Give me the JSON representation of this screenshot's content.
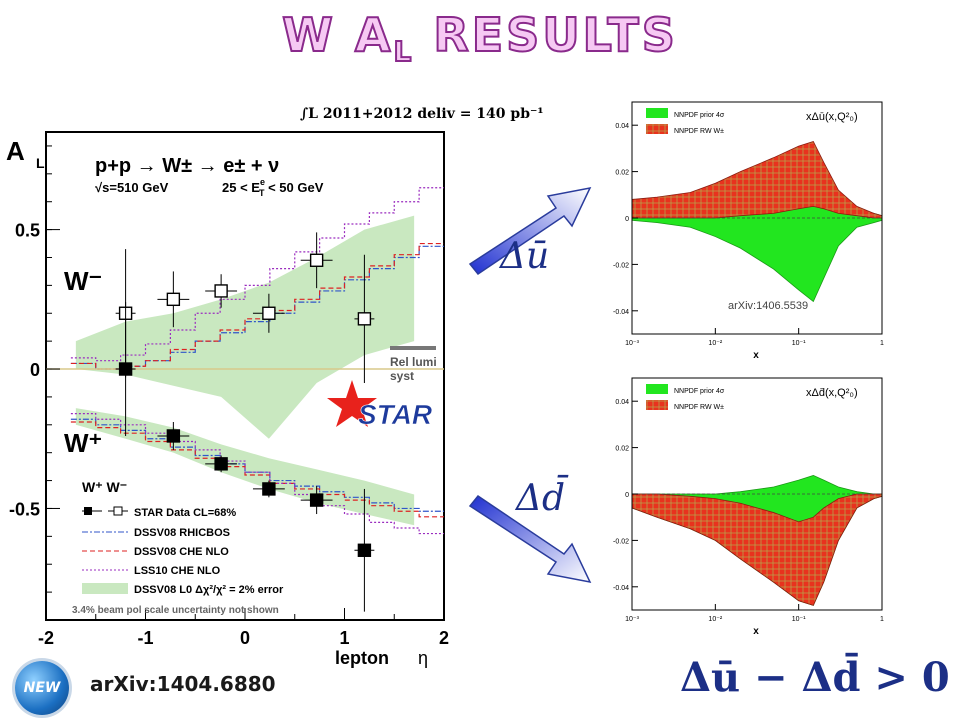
{
  "slide": {
    "title_main": "W A",
    "title_sub": "L",
    "title_tail": " RESULTS",
    "luminosity_label": "∫L 2011+2012 deliv = 140 pb⁻¹",
    "arxiv_left": "arXiv:1404.6880",
    "arxiv_right": "arXiv:1406.5539",
    "new_badge": "NEW",
    "arrow_upper_label": "Δū",
    "arrow_lower_label": "Δd̄",
    "inequality": "Δū − Δd̄ > 0"
  },
  "colors": {
    "title_fill": "#f6c9f3",
    "title_stroke": "#8a2a8c",
    "band": "#c9e8c0",
    "nnpdf_prior": "#22e61f",
    "nnpdf_rw": "#e8321e",
    "arrow": "#2a48d8"
  },
  "main": {
    "ylabel": "A",
    "ylabel_sub": "L",
    "xlabel_1": "lepton",
    "xlabel_2": "η",
    "reaction": "p+p → W± → e± + ν",
    "sqrt_s": "√s=510 GeV",
    "et_cut": "25 < E",
    "et_cut_sup": "e",
    "et_cut_sub": "T",
    "et_cut_tail": " < 50 GeV",
    "label_wminus": "W⁻",
    "label_wplus": "W⁺",
    "rel_lumi_1": "Rel lumi",
    "rel_lumi_2": "syst",
    "star_logo": "STAR",
    "legend_header": "W⁺ W⁻",
    "legend": [
      "STAR Data CL=68%",
      "DSSV08  RHICBOS",
      "DSSV08  CHE NLO",
      "LSS10 CHE NLO",
      "DSSV08 L0  Δχ²/χ² = 2% error"
    ],
    "footnote": "3.4% beam pol scale uncertainty not shown",
    "xticks": [
      "-2",
      "-1",
      "0",
      "1",
      "2"
    ],
    "yticks": [
      "0.5",
      "0",
      "-0.5"
    ]
  },
  "panel_top": {
    "title": "xΔū(x,Q²₀)",
    "legend": [
      "NNPDF prior 4σ",
      "NNPDF RW W±"
    ],
    "xlabel": "x",
    "yticks": [
      "0.04",
      "0.02",
      "0",
      "-0.02",
      "-0.04"
    ],
    "xticks": [
      "10⁻³",
      "10⁻²",
      "10⁻¹",
      "1"
    ]
  },
  "panel_bottom": {
    "title": "xΔd̄(x,Q²₀)",
    "legend": [
      "NNPDF prior 4σ",
      "NNPDF RW W±"
    ],
    "xlabel": "x",
    "yticks": [
      "0.04",
      "0.02",
      "0",
      "-0.02",
      "-0.04"
    ],
    "xticks": [
      "10⁻³",
      "10⁻²",
      "10⁻¹",
      "1"
    ]
  },
  "chart_data": [
    {
      "type": "scatter",
      "title": "",
      "xlabel": "lepton η",
      "ylabel": "A_L",
      "xlim": [
        -2,
        2
      ],
      "ylim": [
        -0.9,
        0.85
      ],
      "series": [
        {
          "name": "W⁻",
          "marker": "open-square",
          "x": [
            -1.2,
            -0.72,
            -0.24,
            0.24,
            0.72,
            1.2
          ],
          "y": [
            0.2,
            0.25,
            0.28,
            0.2,
            0.39,
            0.18
          ],
          "yerr": [
            0.23,
            0.1,
            0.06,
            0.07,
            0.1,
            0.23
          ],
          "xerr": [
            0.1,
            0.16,
            0.16,
            0.16,
            0.16,
            0.1
          ]
        },
        {
          "name": "W⁺",
          "marker": "filled-square",
          "x": [
            -1.2,
            -0.72,
            -0.24,
            0.24,
            0.72,
            1.2
          ],
          "y": [
            0.0,
            -0.24,
            -0.34,
            -0.43,
            -0.47,
            -0.65
          ],
          "yerr": [
            0.24,
            0.05,
            0.03,
            0.03,
            0.05,
            0.22
          ],
          "xerr": [
            0.1,
            0.16,
            0.16,
            0.16,
            0.16,
            0.1
          ]
        }
      ],
      "bands": [
        {
          "name": "DSSV08 L0 Δχ²/χ² = 2% error (W⁻)",
          "x": [
            -1.7,
            -1.2,
            -0.72,
            -0.24,
            0.24,
            0.72,
            1.2,
            1.7
          ],
          "upper": [
            0.1,
            0.17,
            0.2,
            0.25,
            0.31,
            0.4,
            0.5,
            0.55
          ],
          "lower": [
            0.0,
            -0.02,
            -0.06,
            -0.1,
            -0.25,
            -0.05,
            0.05,
            0.1
          ]
        },
        {
          "name": "DSSV08 L0 Δχ²/χ² = 2% error (W⁺)",
          "x": [
            -1.7,
            -1.2,
            -0.72,
            -0.24,
            0.24,
            0.72,
            1.2,
            1.7
          ],
          "upper": [
            -0.14,
            -0.17,
            -0.21,
            -0.27,
            -0.32,
            -0.36,
            -0.4,
            -0.45
          ],
          "lower": [
            -0.2,
            -0.25,
            -0.3,
            -0.37,
            -0.43,
            -0.48,
            -0.52,
            -0.56
          ]
        }
      ],
      "curves": [
        {
          "name": "DSSV08 RHICBOS (W⁻)",
          "style": "blue-dashdot",
          "x": [
            -1.75,
            -1.5,
            -1.25,
            -1.0,
            -0.75,
            -0.5,
            -0.25,
            0,
            0.25,
            0.5,
            0.75,
            1.0,
            1.25,
            1.5,
            1.75
          ],
          "y": [
            0.02,
            0.0,
            0.01,
            0.03,
            0.06,
            0.1,
            0.13,
            0.17,
            0.2,
            0.24,
            0.28,
            0.32,
            0.36,
            0.4,
            0.44
          ]
        },
        {
          "name": "DSSV08 CHE NLO (W⁻)",
          "style": "red-dashed",
          "x": [
            -1.75,
            -1.5,
            -1.25,
            -1.0,
            -0.75,
            -0.5,
            -0.25,
            0,
            0.25,
            0.5,
            0.75,
            1.0,
            1.25,
            1.5,
            1.75
          ],
          "y": [
            0.02,
            0.0,
            0.01,
            0.03,
            0.07,
            0.1,
            0.14,
            0.18,
            0.21,
            0.25,
            0.29,
            0.33,
            0.37,
            0.41,
            0.45
          ]
        },
        {
          "name": "LSS10 CHE NLO (W⁻)",
          "style": "purple-dotted",
          "x": [
            -1.75,
            -1.5,
            -1.25,
            -1.0,
            -0.75,
            -0.5,
            -0.25,
            0,
            0.25,
            0.5,
            0.75,
            1.0,
            1.25,
            1.5,
            1.75
          ],
          "y": [
            0.04,
            0.03,
            0.05,
            0.09,
            0.14,
            0.2,
            0.25,
            0.3,
            0.36,
            0.42,
            0.47,
            0.52,
            0.56,
            0.6,
            0.65
          ]
        },
        {
          "name": "DSSV08 RHICBOS (W⁺)",
          "style": "blue-dashdot",
          "x": [
            -1.75,
            -1.5,
            -1.25,
            -1.0,
            -0.75,
            -0.5,
            -0.25,
            0,
            0.25,
            0.5,
            0.75,
            1.0,
            1.25,
            1.5,
            1.75
          ],
          "y": [
            -0.18,
            -0.2,
            -0.22,
            -0.25,
            -0.28,
            -0.31,
            -0.34,
            -0.37,
            -0.4,
            -0.42,
            -0.44,
            -0.46,
            -0.48,
            -0.5,
            -0.51
          ]
        },
        {
          "name": "DSSV08 CHE NLO (W⁺)",
          "style": "red-dashed",
          "x": [
            -1.75,
            -1.5,
            -1.25,
            -1.0,
            -0.75,
            -0.5,
            -0.25,
            0,
            0.25,
            0.5,
            0.75,
            1.0,
            1.25,
            1.5,
            1.75
          ],
          "y": [
            -0.19,
            -0.21,
            -0.23,
            -0.26,
            -0.29,
            -0.32,
            -0.35,
            -0.38,
            -0.41,
            -0.43,
            -0.45,
            -0.47,
            -0.49,
            -0.51,
            -0.53
          ]
        },
        {
          "name": "LSS10 CHE NLO (W⁺)",
          "style": "purple-dotted",
          "x": [
            -1.75,
            -1.5,
            -1.25,
            -1.0,
            -0.75,
            -0.5,
            -0.25,
            0,
            0.25,
            0.5,
            0.75,
            1.0,
            1.25,
            1.5,
            1.75
          ],
          "y": [
            -0.16,
            -0.18,
            -0.2,
            -0.23,
            -0.26,
            -0.29,
            -0.33,
            -0.37,
            -0.41,
            -0.45,
            -0.49,
            -0.52,
            -0.55,
            -0.57,
            -0.59
          ]
        }
      ]
    },
    {
      "type": "area",
      "title": "xΔū(x,Q²₀)",
      "xlabel": "x",
      "xscale": "log",
      "xlim": [
        0.001,
        1
      ],
      "ylim": [
        -0.05,
        0.05
      ],
      "x": [
        0.001,
        0.002,
        0.005,
        0.01,
        0.02,
        0.05,
        0.1,
        0.15,
        0.2,
        0.3,
        0.5,
        0.8,
        1
      ],
      "series": [
        {
          "name": "NNPDF prior 4σ",
          "upper": [
            0.002,
            0.003,
            0.005,
            0.008,
            0.012,
            0.018,
            0.022,
            0.024,
            0.018,
            0.01,
            0.004,
            0.002,
            0.001
          ],
          "lower": [
            -0.001,
            -0.002,
            -0.004,
            -0.008,
            -0.013,
            -0.022,
            -0.031,
            -0.036,
            -0.026,
            -0.012,
            -0.004,
            -0.002,
            -0.001
          ]
        },
        {
          "name": "NNPDF RW W±",
          "upper": [
            0.008,
            0.009,
            0.011,
            0.015,
            0.02,
            0.026,
            0.031,
            0.033,
            0.024,
            0.012,
            0.005,
            0.002,
            0.001
          ],
          "lower": [
            0.0,
            0.0,
            0.0,
            0.0,
            0.001,
            0.002,
            0.004,
            0.005,
            0.004,
            0.002,
            0.001,
            0.0,
            0.0
          ]
        }
      ]
    },
    {
      "type": "area",
      "title": "xΔd̄(x,Q²₀)",
      "xlabel": "x",
      "xscale": "log",
      "xlim": [
        0.001,
        1
      ],
      "ylim": [
        -0.05,
        0.05
      ],
      "x": [
        0.001,
        0.002,
        0.005,
        0.01,
        0.02,
        0.05,
        0.1,
        0.15,
        0.2,
        0.3,
        0.5,
        0.8,
        1
      ],
      "series": [
        {
          "name": "NNPDF prior 4σ",
          "upper": [
            0.0,
            0.0,
            0.0,
            0.0,
            0.001,
            0.003,
            0.006,
            0.008,
            0.006,
            0.003,
            0.001,
            0.0,
            0.0
          ],
          "lower": [
            -0.006,
            -0.01,
            -0.015,
            -0.02,
            -0.028,
            -0.038,
            -0.046,
            -0.048,
            -0.038,
            -0.02,
            -0.006,
            -0.002,
            -0.001
          ]
        },
        {
          "name": "NNPDF RW W±",
          "upper": [
            0.0,
            0.0,
            -0.001,
            -0.002,
            -0.004,
            -0.008,
            -0.012,
            -0.01,
            -0.006,
            -0.002,
            0.0,
            0.0,
            0.0
          ],
          "lower": [
            -0.006,
            -0.01,
            -0.015,
            -0.02,
            -0.028,
            -0.038,
            -0.046,
            -0.048,
            -0.038,
            -0.02,
            -0.006,
            -0.002,
            -0.001
          ]
        }
      ]
    }
  ]
}
